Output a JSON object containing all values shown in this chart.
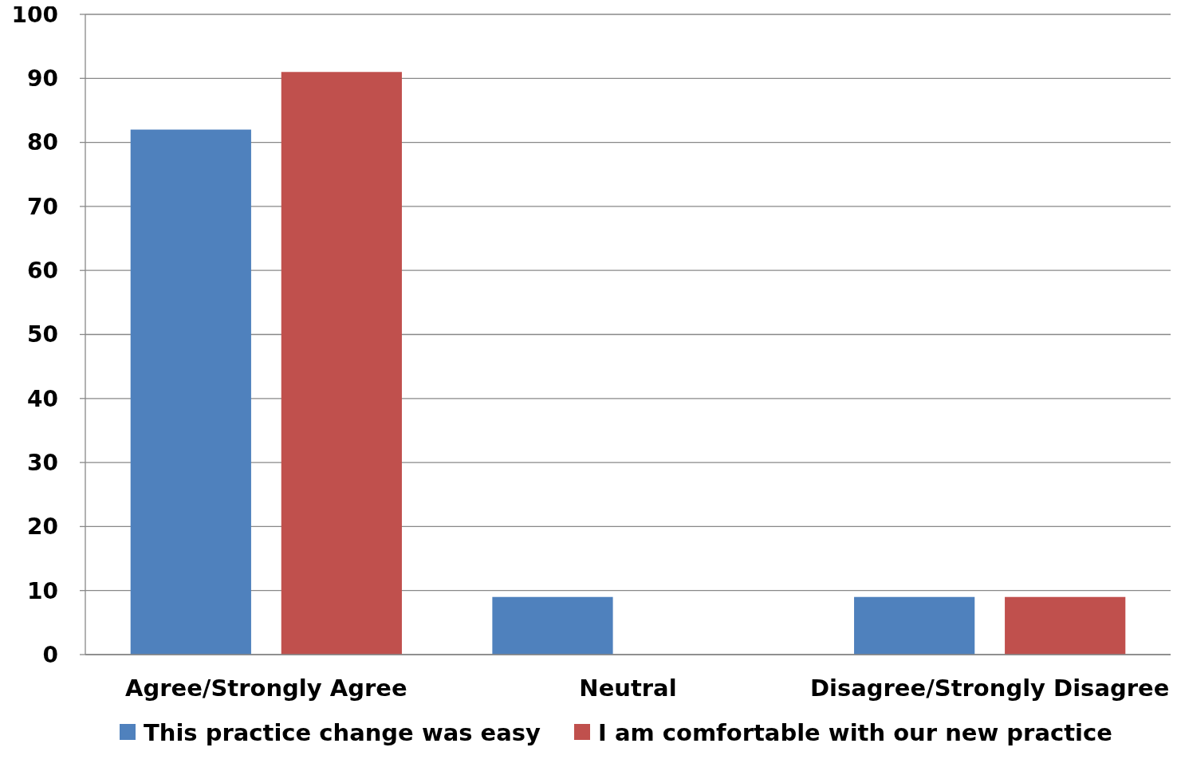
{
  "chart_data": {
    "type": "bar",
    "categories": [
      "Agree/Strongly Agree",
      "Neutral",
      "Disagree/Strongly Disagree"
    ],
    "series": [
      {
        "name": "This practice change was easy",
        "color": "#4f81bd",
        "values": [
          82,
          9,
          9
        ]
      },
      {
        "name": "I am comfortable with our new practice",
        "color": "#c0504d",
        "values": [
          91,
          0,
          9
        ]
      }
    ],
    "ylim": [
      0,
      100
    ],
    "yticks": [
      0,
      10,
      20,
      30,
      40,
      50,
      60,
      70,
      80,
      90,
      100
    ],
    "grid": "y",
    "legend": "bottom"
  }
}
